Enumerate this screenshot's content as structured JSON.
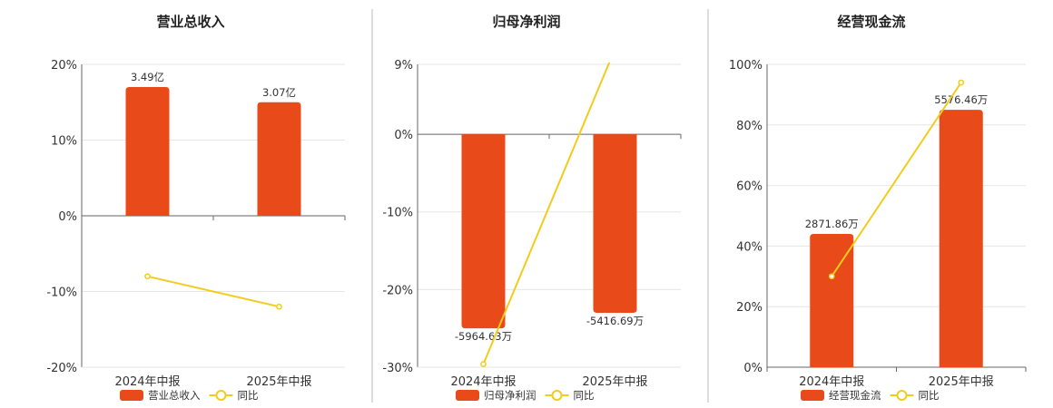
{
  "colors": {
    "bar": "#E84A1A",
    "line": "#F2CC1B",
    "marker_fill": "#ffffff"
  },
  "chart_data": [
    {
      "type": "bar",
      "title": "营业总收入",
      "categories": [
        "2024年中报",
        "2025年中报"
      ],
      "series": [
        {
          "name": "营业总收入",
          "type": "bar",
          "values": [
            17,
            15
          ],
          "labels": [
            "3.49亿",
            "3.07亿"
          ]
        },
        {
          "name": "同比",
          "type": "line",
          "values": [
            -8,
            -12
          ]
        }
      ],
      "ylim": [
        -20,
        20
      ],
      "yticks": [
        20,
        10,
        0,
        -10,
        -20
      ],
      "ytick_labels": [
        "20%",
        "10%",
        "0%",
        "-10%",
        "-20%"
      ],
      "grid": true,
      "legend": "bottom"
    },
    {
      "type": "bar",
      "title": "归母净利润",
      "categories": [
        "2024年中报",
        "2025年中报"
      ],
      "series": [
        {
          "name": "归母净利润",
          "type": "bar",
          "values": [
            -25,
            -23
          ],
          "labels": [
            "-5964.63万",
            "-5416.69万"
          ]
        },
        {
          "name": "同比",
          "type": "line",
          "values": [
            -29.6,
            11
          ]
        }
      ],
      "ylim": [
        -30,
        9
      ],
      "yticks": [
        9,
        0,
        -10,
        -20,
        -30
      ],
      "ytick_labels": [
        "9%",
        "0%",
        "-10%",
        "-20%",
        "-30%"
      ],
      "grid": true,
      "legend": "bottom"
    },
    {
      "type": "bar",
      "title": "经营现金流",
      "categories": [
        "2024年中报",
        "2025年中报"
      ],
      "series": [
        {
          "name": "经营现金流",
          "type": "bar",
          "values": [
            44,
            85
          ],
          "labels": [
            "2871.86万",
            "5576.46万"
          ]
        },
        {
          "name": "同比",
          "type": "line",
          "values": [
            30,
            94
          ]
        }
      ],
      "ylim": [
        0,
        100
      ],
      "yticks": [
        100,
        80,
        60,
        40,
        20,
        0
      ],
      "ytick_labels": [
        "100%",
        "80%",
        "60%",
        "40%",
        "20%",
        "0%"
      ],
      "grid": true,
      "legend": "bottom"
    }
  ]
}
